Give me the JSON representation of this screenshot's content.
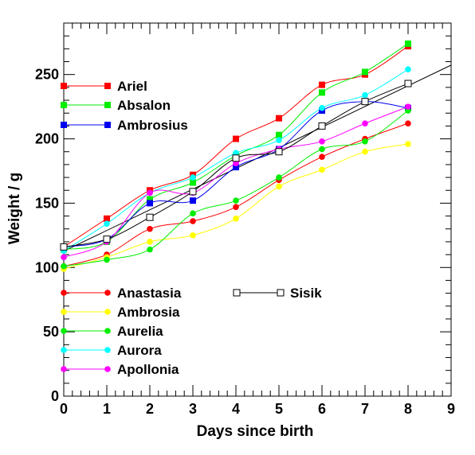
{
  "chart_data": {
    "type": "line",
    "xlabel": "Days since birth",
    "ylabel": "Weight / g",
    "xlim": [
      0,
      9
    ],
    "ylim": [
      0,
      290
    ],
    "xticks": [
      0,
      1,
      2,
      3,
      4,
      5,
      6,
      7,
      8,
      9
    ],
    "yticks": [
      0,
      50,
      100,
      150,
      200,
      250
    ],
    "grid": false,
    "x": [
      0,
      1,
      2,
      3,
      4,
      5,
      6,
      7,
      8
    ],
    "series": [
      {
        "name": "Ariel",
        "color": "#ff0000",
        "marker": "square",
        "values": [
          116,
          138,
          160,
          172,
          200,
          216,
          242,
          250,
          272
        ]
      },
      {
        "name": "Absalon",
        "color": "#00ee00",
        "marker": "square",
        "values": [
          114,
          120,
          153,
          166,
          187,
          203,
          236,
          252,
          274
        ]
      },
      {
        "name": "Ambrosius",
        "color": "#0000ee",
        "marker": "square",
        "values": [
          116,
          122,
          150,
          152,
          178,
          192,
          222,
          229,
          224
        ]
      },
      {
        "name": "Anastasia",
        "color": "#ff0000",
        "marker": "circle",
        "values": [
          101,
          110,
          130,
          136,
          147,
          168,
          186,
          200,
          212
        ]
      },
      {
        "name": "Ambrosia",
        "color": "#ffff00",
        "marker": "circle",
        "values": [
          99,
          108,
          120,
          125,
          138,
          163,
          176,
          190,
          196
        ]
      },
      {
        "name": "Aurelia",
        "color": "#00ee00",
        "marker": "circle",
        "values": [
          101,
          106,
          114,
          142,
          152,
          170,
          192,
          198,
          222
        ]
      },
      {
        "name": "Aurora",
        "color": "#00ffff",
        "marker": "circle",
        "values": [
          113,
          134,
          158,
          170,
          189,
          199,
          224,
          234,
          254
        ]
      },
      {
        "name": "Apollonia",
        "color": "#ff00ff",
        "marker": "circle",
        "values": [
          108,
          120,
          158,
          158,
          181,
          192,
          198,
          212,
          225
        ]
      },
      {
        "name": "Sisik",
        "color": "#000000",
        "marker": "open-square",
        "values": [
          116,
          122,
          139,
          159,
          185,
          190,
          210,
          229,
          243
        ]
      }
    ],
    "fit_line": {
      "color": "#000000",
      "x": [
        0,
        9
      ],
      "y": [
        112.7,
        257.3
      ]
    }
  }
}
